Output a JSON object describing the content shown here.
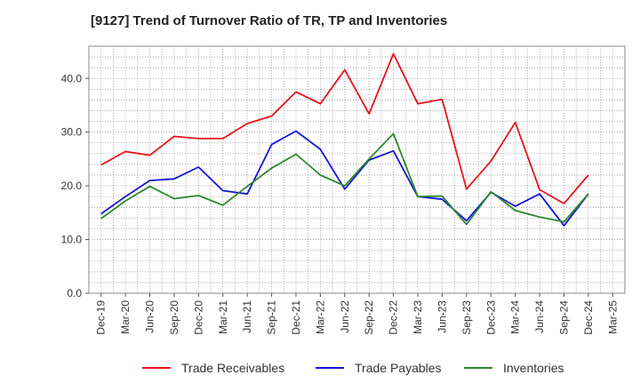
{
  "chart_data": {
    "type": "line",
    "title": "[9127]  Trend of Turnover Ratio of TR, TP and Inventories",
    "xlabel": "",
    "ylabel": "",
    "ylim": [
      0,
      46
    ],
    "yticks": [
      "0.0",
      "10.0",
      "20.0",
      "30.0",
      "40.0"
    ],
    "x": [
      "Dec-19",
      "Mar-20",
      "Jun-20",
      "Sep-20",
      "Dec-20",
      "Mar-21",
      "Jun-21",
      "Sep-21",
      "Dec-21",
      "Mar-22",
      "Jun-22",
      "Sep-22",
      "Dec-22",
      "Mar-23",
      "Jun-23",
      "Sep-23",
      "Dec-23",
      "Mar-24",
      "Jun-24",
      "Sep-24",
      "Dec-24",
      "Mar-25"
    ],
    "grid": true,
    "legend_position": "bottom",
    "series": [
      {
        "name": "Trade Receivables",
        "color": "#e8141b",
        "values": [
          23.9,
          26.4,
          25.7,
          29.2,
          28.8,
          28.8,
          31.6,
          33.0,
          37.5,
          35.3,
          41.6,
          33.4,
          44.6,
          35.3,
          36.1,
          19.4,
          24.6,
          31.8,
          19.3,
          16.7,
          22.0,
          null
        ]
      },
      {
        "name": "Trade Payables",
        "color": "#1414d8",
        "values": [
          14.8,
          18.0,
          21.0,
          21.3,
          23.5,
          19.1,
          18.5,
          27.7,
          30.2,
          26.8,
          19.4,
          24.8,
          26.5,
          18.0,
          17.5,
          13.5,
          18.8,
          16.2,
          18.5,
          12.6,
          18.5,
          null
        ]
      },
      {
        "name": "Inventories",
        "color": "#2a8a2a",
        "values": [
          13.9,
          17.2,
          19.9,
          17.6,
          18.2,
          16.4,
          19.9,
          23.3,
          25.9,
          22.0,
          20.0,
          25.0,
          29.7,
          18.0,
          18.1,
          12.8,
          18.9,
          15.4,
          14.2,
          13.3,
          18.5,
          null
        ]
      }
    ]
  }
}
